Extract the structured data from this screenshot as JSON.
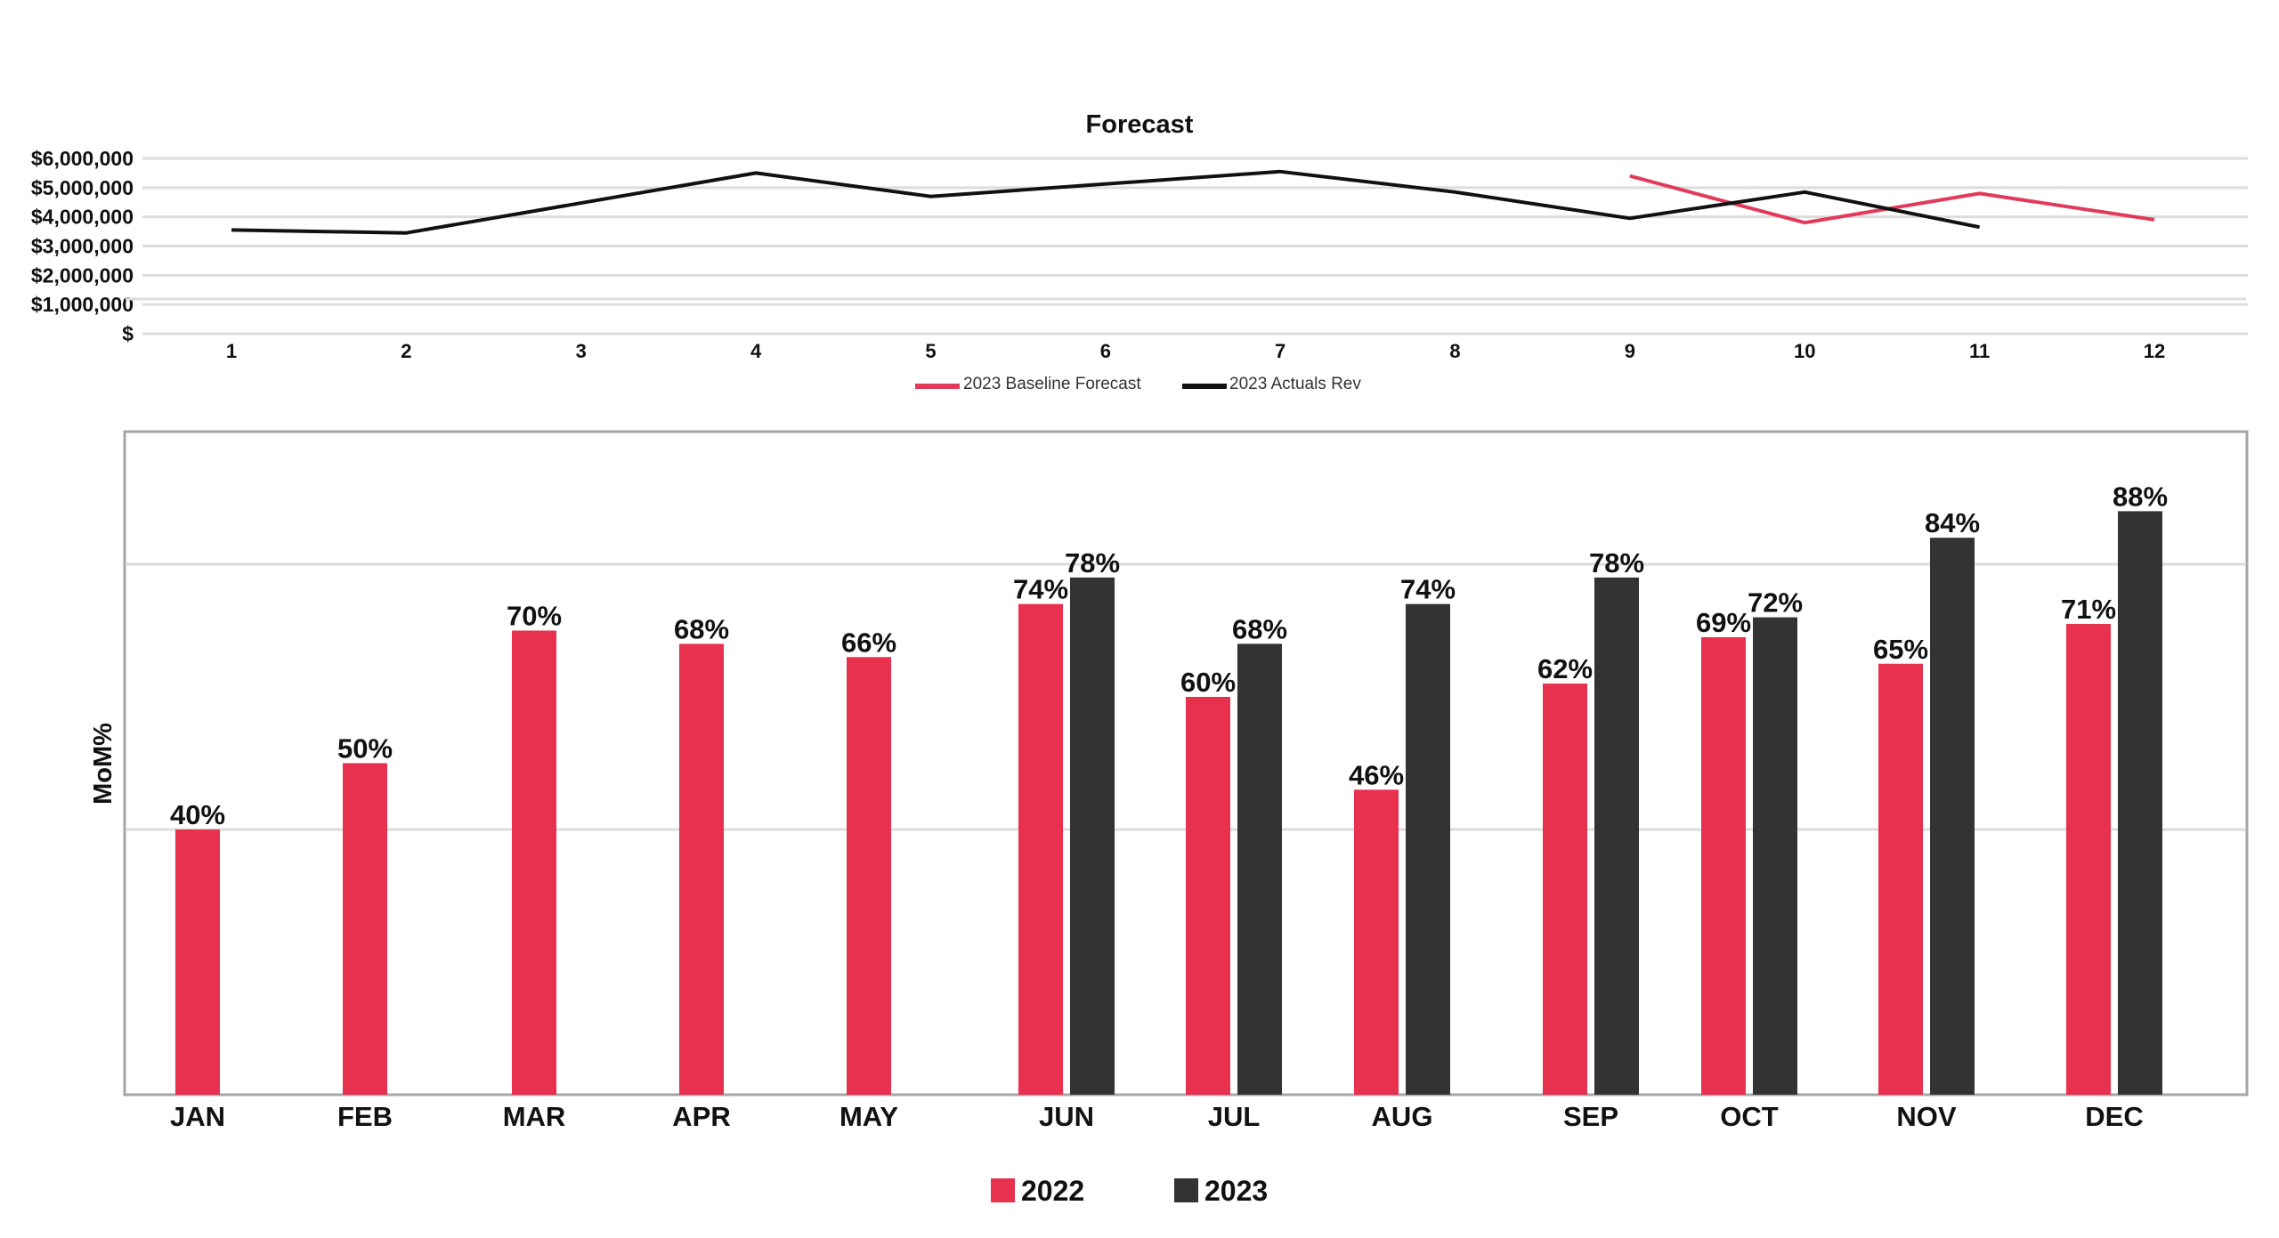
{
  "colors": {
    "baseline": "#e13a5a",
    "actuals": "#111111",
    "y2022": "#e8304f",
    "y2023": "#333333",
    "grid": "#dcdcdc",
    "frame": "#a6a6a6"
  },
  "chart_data": [
    {
      "type": "line",
      "title": "Forecast",
      "x": [
        1,
        2,
        3,
        4,
        5,
        6,
        7,
        8,
        9,
        10,
        11,
        12
      ],
      "ylim": [
        0,
        6000000
      ],
      "yticks": [
        0,
        1000000,
        2000000,
        3000000,
        4000000,
        5000000,
        6000000
      ],
      "ytick_labels": [
        "$",
        "$1,000,000",
        "$2,000,000",
        "$3,000,000",
        "$4,000,000",
        "$5,000,000",
        "$6,000,000"
      ],
      "xtick_labels": [
        "1",
        "2",
        "3",
        "4",
        "5",
        "6",
        "7",
        "8",
        "9",
        "10",
        "11",
        "12"
      ],
      "grid": true,
      "legend_position": "bottom",
      "series": [
        {
          "name": "2023 Baseline Forecast",
          "points": [
            [
              9,
              5400000
            ],
            [
              10,
              3800000
            ],
            [
              11,
              4800000
            ],
            [
              12,
              3900000
            ]
          ]
        },
        {
          "name": "2023 Actuals Rev",
          "points": [
            [
              1,
              3550000
            ],
            [
              2,
              3450000
            ],
            [
              4,
              5500000
            ],
            [
              5,
              4700000
            ],
            [
              7,
              5550000
            ],
            [
              8,
              4850000
            ],
            [
              9,
              3950000
            ],
            [
              10,
              4850000
            ],
            [
              11,
              3650000
            ]
          ]
        }
      ]
    },
    {
      "type": "bar",
      "ylabel": "MoM%",
      "categories": [
        "JAN",
        "FEB",
        "MAR",
        "APR",
        "MAY",
        "JUN",
        "JUL",
        "AUG",
        "SEP",
        "OCT",
        "NOV",
        "DEC"
      ],
      "ylim": [
        0,
        100
      ],
      "grid": true,
      "legend_position": "bottom",
      "series": [
        {
          "name": "2022",
          "values": [
            40,
            50,
            70,
            68,
            66,
            74,
            60,
            46,
            62,
            69,
            65,
            71
          ],
          "labels": [
            "40%",
            "50%",
            "70%",
            "68%",
            "66%",
            "74%",
            "60%",
            "46%",
            "62%",
            "69%",
            "65%",
            "71%"
          ]
        },
        {
          "name": "2023",
          "values": [
            null,
            null,
            null,
            null,
            null,
            78,
            68,
            74,
            78,
            72,
            84,
            88
          ],
          "labels": [
            "",
            "",
            "",
            "",
            "",
            "78%",
            "68%",
            "74%",
            "78%",
            "72%",
            "84%",
            "88%"
          ]
        }
      ]
    }
  ]
}
